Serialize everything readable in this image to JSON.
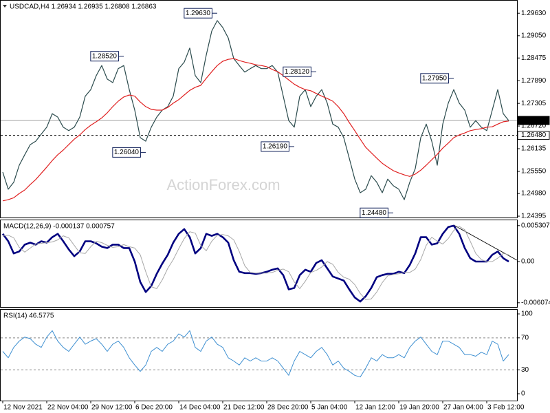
{
  "chart_data": [
    {
      "type": "line",
      "title": "USDCAD,H4  1.26934 1.26935 1.26808 1.26863",
      "watermark": "ActionForex.com",
      "categories": [
        "12 Nov 2021",
        null,
        null,
        null,
        null,
        null,
        null,
        null,
        "22 Nov 04:00",
        null,
        null,
        null,
        null,
        null,
        null,
        null,
        "29 Nov 12:00",
        null,
        null,
        null,
        null,
        null,
        null,
        null,
        "6 Dec 20:00",
        null,
        null,
        null,
        null,
        null,
        null,
        null,
        "14 Dec 04:00",
        null,
        null,
        null,
        null,
        null,
        null,
        null,
        "21 Dec 12:00",
        null,
        null,
        null,
        null,
        null,
        null,
        null,
        "28 Dec 20:00",
        null,
        null,
        null,
        null,
        null,
        null,
        null,
        "5 Jan 04:00",
        null,
        null,
        null,
        null,
        null,
        null,
        null,
        "12 Jan 12:00",
        null,
        null,
        null,
        null,
        null,
        null,
        null,
        "19 Jan 20:00",
        null,
        null,
        null,
        null,
        null,
        null,
        null,
        "27 Jan 04:00",
        null,
        null,
        null,
        null,
        null,
        null,
        null,
        "3 Feb 12:00",
        null,
        null,
        null,
        null
      ],
      "series": [
        {
          "color": "#2a4a4c",
          "values": [
            1.2553,
            1.2509,
            1.2527,
            1.2571,
            1.2598,
            1.2624,
            1.2633,
            1.2651,
            1.2669,
            1.2704,
            1.2695,
            1.2669,
            1.266,
            1.2669,
            1.2695,
            1.2749,
            1.2766,
            1.2802,
            1.2828,
            1.2793,
            1.2784,
            1.282,
            1.2828,
            1.2766,
            1.2713,
            1.2642,
            1.2633,
            1.2669,
            1.2695,
            1.2713,
            1.2722,
            1.2749,
            1.282,
            1.2837,
            1.2873,
            1.2802,
            1.2784,
            1.2855,
            1.2917,
            1.2944,
            1.2926,
            1.2899,
            1.2846,
            1.2828,
            1.2811,
            1.282,
            1.2828,
            1.282,
            1.282,
            1.2828,
            1.2811,
            1.2749,
            1.2686,
            1.2669,
            1.2749,
            1.2766,
            1.2722,
            1.2749,
            1.2766,
            1.2731,
            1.2677,
            1.2669,
            1.2642,
            1.2589,
            1.2535,
            1.25,
            1.2509,
            1.2544,
            1.2527,
            1.25,
            1.2535,
            1.2518,
            1.2509,
            1.2482,
            1.2527,
            1.2562,
            1.2642,
            1.2677,
            1.2633,
            1.2571,
            1.2677,
            1.2731,
            1.2766,
            1.2731,
            1.2713,
            1.2669,
            1.2686,
            1.2669,
            1.266,
            1.2713,
            1.2766,
            1.2704,
            1.2686
          ]
        },
        {
          "color": "#e02020",
          "values": [
            1.2479,
            1.2482,
            1.2487,
            1.2498,
            1.2507,
            1.2521,
            1.2534,
            1.255,
            1.2566,
            1.2583,
            1.2598,
            1.261,
            1.2624,
            1.2638,
            1.2649,
            1.2663,
            1.2674,
            1.2683,
            1.2693,
            1.2706,
            1.2722,
            1.2736,
            1.2747,
            1.2752,
            1.2749,
            1.2734,
            1.2722,
            1.2715,
            1.2713,
            1.2713,
            1.272,
            1.2731,
            1.274,
            1.2752,
            1.2764,
            1.2772,
            1.2777,
            1.2795,
            1.2812,
            1.2828,
            1.2839,
            1.2844,
            1.2846,
            1.2841,
            1.2837,
            1.2834,
            1.283,
            1.2828,
            1.2825,
            1.2818,
            1.2812,
            1.2802,
            1.2791,
            1.278,
            1.2772,
            1.2766,
            1.2763,
            1.2756,
            1.2749,
            1.2743,
            1.2736,
            1.2722,
            1.2704,
            1.2681,
            1.266,
            1.2638,
            1.2617,
            1.2603,
            1.2589,
            1.2576,
            1.2566,
            1.2557,
            1.2551,
            1.2546,
            1.2542,
            1.2548,
            1.2558,
            1.2571,
            1.2585,
            1.2599,
            1.2615,
            1.2628,
            1.2642,
            1.2649,
            1.2654,
            1.266,
            1.2663,
            1.2665,
            1.2669,
            1.267,
            1.2677,
            1.2683,
            1.2685
          ]
        }
      ],
      "ylim": [
        1.2436,
        1.299
      ],
      "yticks": [
        {
          "value": 1.2963,
          "label": "1.29630"
        },
        {
          "value": 1.2905,
          "label": "1.29050"
        },
        1.28475,
        {
          "value": 1.2789,
          "label": "1.27890"
        },
        1.27305,
        {
          "value": 1.2672,
          "label": "1.26720"
        },
        1.26135,
        {
          "value": 1.2555,
          "label": "1.25550"
        },
        {
          "value": 1.2498,
          "label": "1.24980"
        },
        1.24395
      ],
      "annotations": [
        {
          "value": 1.2963,
          "label": "1.29630",
          "x": 39
        },
        {
          "value": 1.2852,
          "label": "1.28520",
          "x": 22
        },
        {
          "value": 1.2604,
          "label": "1.26040",
          "x": 26
        },
        {
          "value": 1.2619,
          "label": "1.26190",
          "x": 53
        },
        {
          "value": 1.2812,
          "label": "1.28120",
          "x": 57
        },
        {
          "value": 1.2795,
          "label": "1.27950",
          "x": 82
        },
        {
          "value": 1.2448,
          "label": "1.24480",
          "x": 71
        }
      ],
      "price_lines": [
        {
          "value": 1.26863,
          "label": "1.26863",
          "style": "current"
        },
        {
          "value": 1.2648,
          "label": "1.26480",
          "style": "level"
        }
      ]
    },
    {
      "type": "line",
      "title": "MACD(12,26,9) -0.000137 0.000757",
      "series": [
        {
          "color": "#000080",
          "values": [
            0.0041,
            0.003,
            0.0012,
            0.0015,
            0.0025,
            0.0028,
            0.0025,
            0.003,
            0.0028,
            0.0036,
            0.0041,
            0.003,
            0.0018,
            0.0008,
            0.0015,
            0.003,
            0.003,
            0.0027,
            0.0022,
            0.002,
            0.0025,
            0.0025,
            0.002,
            0.002,
            0,
            -0.003,
            -0.0045,
            -0.0036,
            -0.0018,
            -0.0003,
            0.001,
            0.0028,
            0.0041,
            0.0048,
            0.0036,
            0.0012,
            0.002,
            0.0041,
            0.0038,
            0.0041,
            0.0036,
            0.0028,
            0.0002,
            -0.0015,
            -0.0017,
            -0.0017,
            -0.0018,
            -0.0017,
            -0.0015,
            -0.0012,
            -0.001,
            -0.002,
            -0.0041,
            -0.0039,
            -0.002,
            -0.0012,
            -0.0015,
            -0.0002,
            0.0002,
            -0.001,
            -0.0022,
            -0.0025,
            -0.0028,
            -0.0041,
            -0.0053,
            -0.0059,
            -0.0051,
            -0.0039,
            -0.0023,
            -0.002,
            -0.0018,
            -0.0018,
            -0.0015,
            -0.0017,
            -0.0005,
            0.0012,
            0.0036,
            0.0036,
            0.0025,
            0.0027,
            0.0041,
            0.0051,
            0.0053,
            0.0041,
            0.002,
            0.0005,
            0,
            0,
            0,
            0.001,
            0.0015,
            0.0005,
            0
          ]
        },
        {
          "color": "#a8a8a8",
          "values": [
            0.0038,
            0.0039,
            0.0035,
            0.0021,
            0.0014,
            0.002,
            0.0026,
            0.0027,
            0.0028,
            0.0029,
            0.0032,
            0.0038,
            0.0035,
            0.0024,
            0.0013,
            0.0012,
            0.0022,
            0.003,
            0.0028,
            0.0024,
            0.0021,
            0.0022,
            0.0025,
            0.0022,
            0.002,
            0.001,
            -0.0015,
            -0.0037,
            -0.004,
            -0.0027,
            -0.001,
            0.0003,
            0.0019,
            0.0034,
            0.0044,
            0.0042,
            0.0024,
            0.0016,
            0.003,
            0.0039,
            0.004,
            0.0038,
            0.0032,
            0.0015,
            -0.0006,
            -0.0016,
            -0.0017,
            -0.0017,
            -0.0017,
            -0.0016,
            -0.0013,
            -0.0011,
            -0.0015,
            -0.003,
            -0.004,
            -0.0029,
            -0.0016,
            -0.0013,
            -0.0008,
            0,
            -0.0004,
            -0.0016,
            -0.0023,
            -0.0026,
            -0.0034,
            -0.0047,
            -0.0056,
            -0.0055,
            -0.0045,
            -0.0031,
            -0.0021,
            -0.0019,
            -0.0018,
            -0.0016,
            -0.0016,
            -0.0011,
            0.0003,
            0.0024,
            0.0036,
            0.003,
            0.0026,
            0.0034,
            0.0046,
            0.0052,
            0.0047,
            0.003,
            0.0012,
            0.0003,
            0,
            0,
            0.0005,
            0.0012,
            0.001
          ]
        }
      ],
      "ylim": [
        -0.0067,
        0.0061
      ],
      "yticks": [
        0.005307,
        {
          "value": 0,
          "label": "0.00"
        },
        -0.006074
      ]
    },
    {
      "type": "line",
      "title": "RSI(14) 46.5775",
      "series": [
        {
          "color": "#3d8fd1",
          "values": [
            53,
            45,
            58,
            66,
            71,
            69,
            62,
            58,
            71,
            79,
            66,
            58,
            53,
            62,
            71,
            62,
            66,
            69,
            62,
            53,
            62,
            66,
            58,
            45,
            36,
            28,
            36,
            53,
            58,
            53,
            62,
            66,
            75,
            71,
            79,
            58,
            53,
            66,
            71,
            62,
            58,
            45,
            41,
            36,
            45,
            41,
            45,
            41,
            41,
            45,
            41,
            32,
            23,
            41,
            53,
            49,
            45,
            53,
            58,
            49,
            36,
            41,
            32,
            28,
            23,
            21,
            32,
            45,
            41,
            49,
            45,
            45,
            49,
            45,
            58,
            66,
            71,
            62,
            53,
            49,
            66,
            66,
            62,
            58,
            49,
            49,
            47,
            52,
            49,
            66,
            62,
            41,
            49
          ]
        }
      ],
      "ylim": [
        -8.6,
        105.2
      ],
      "yticks": [
        100,
        70,
        30,
        0
      ],
      "levels": [
        70,
        30
      ]
    }
  ]
}
